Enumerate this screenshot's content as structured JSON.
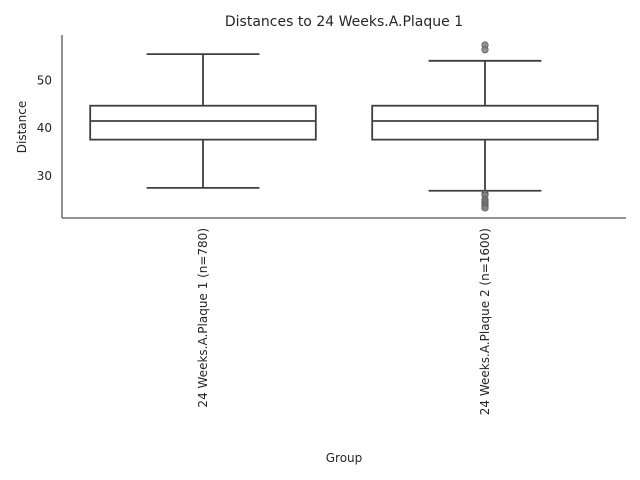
{
  "chart_data": {
    "type": "box",
    "title": "Distances to 24 Weeks.A.Plaque 1",
    "xlabel": "Group",
    "ylabel": "Distance",
    "ylim": [
      21.2,
      59.5
    ],
    "yticks": [
      30,
      40,
      50
    ],
    "grid": false,
    "groups": [
      {
        "label": "24 Weeks.A.Plaque 1 (n=780)",
        "whisker_low": 27.5,
        "q1": 37.6,
        "median": 41.5,
        "q3": 44.7,
        "whisker_high": 55.5,
        "outliers": []
      },
      {
        "label": "24 Weeks.A.Plaque 2 (n=1600)",
        "whisker_low": 26.9,
        "q1": 37.6,
        "median": 41.5,
        "q3": 44.7,
        "whisker_high": 54.1,
        "outliers": [
          57.4,
          56.4,
          26.3,
          26.0,
          25.0,
          24.6,
          24.1,
          23.7,
          23.3
        ]
      }
    ]
  }
}
